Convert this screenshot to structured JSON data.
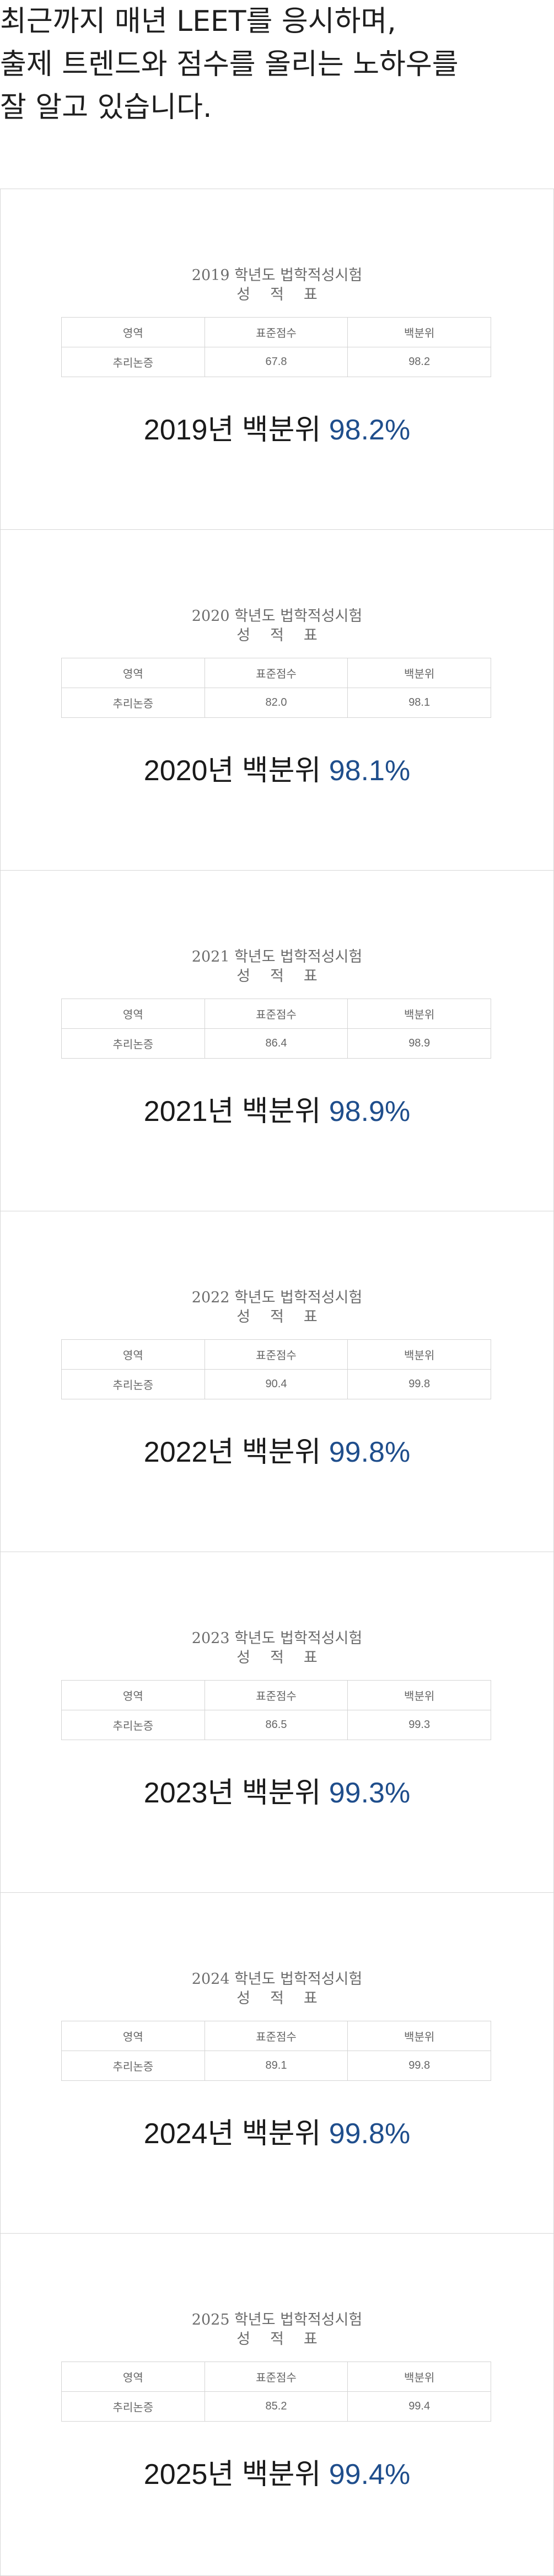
{
  "headline": {
    "line1": "최근까지 매년 LEET를 응시하며,",
    "line2": "출제 트렌드와 점수를 올리는 노하우를",
    "line3": "잘 알고 있습니다."
  },
  "table_headers": {
    "area": "영역",
    "standard_score": "표준점수",
    "percentile": "백분위"
  },
  "accent_color": "#1f4e8c",
  "cards": [
    {
      "report_title": "2019 학년도 법학적성시험",
      "report_sub": [
        "성",
        "적",
        "표"
      ],
      "row": {
        "area": "추리논증",
        "standard_score": "67.8",
        "percentile": "98.2"
      },
      "result_prefix": "2019년 백분위 ",
      "result_value": "98.2%"
    },
    {
      "report_title": "2020 학년도 법학적성시험",
      "report_sub": [
        "성",
        "적",
        "표"
      ],
      "row": {
        "area": "추리논증",
        "standard_score": "82.0",
        "percentile": "98.1"
      },
      "result_prefix": "2020년 백분위 ",
      "result_value": "98.1%"
    },
    {
      "report_title": "2021 학년도 법학적성시험",
      "report_sub": [
        "성",
        "적",
        "표"
      ],
      "row": {
        "area": "추리논증",
        "standard_score": "86.4",
        "percentile": "98.9"
      },
      "result_prefix": "2021년 백분위 ",
      "result_value": "98.9%"
    },
    {
      "report_title": "2022 학년도 법학적성시험",
      "report_sub": [
        "성",
        "적",
        "표"
      ],
      "row": {
        "area": "추리논증",
        "standard_score": "90.4",
        "percentile": "99.8"
      },
      "result_prefix": "2022년 백분위 ",
      "result_value": "99.8%"
    },
    {
      "report_title": "2023 학년도 법학적성시험",
      "report_sub": [
        "성",
        "적",
        "표"
      ],
      "row": {
        "area": "추리논증",
        "standard_score": "86.5",
        "percentile": "99.3"
      },
      "result_prefix": "2023년 백분위 ",
      "result_value": "99.3%"
    },
    {
      "report_title": "2024 학년도 법학적성시험",
      "report_sub": [
        "성",
        "적",
        "표"
      ],
      "row": {
        "area": "추리논증",
        "standard_score": "89.1",
        "percentile": "99.8"
      },
      "result_prefix": "2024년 백분위 ",
      "result_value": "99.8%"
    },
    {
      "report_title": "2025 학년도 법학적성시험",
      "report_sub": [
        "성",
        "적",
        "표"
      ],
      "row": {
        "area": "추리논증",
        "standard_score": "85.2",
        "percentile": "99.4"
      },
      "result_prefix": "2025년 백분위 ",
      "result_value": "99.4%"
    }
  ]
}
